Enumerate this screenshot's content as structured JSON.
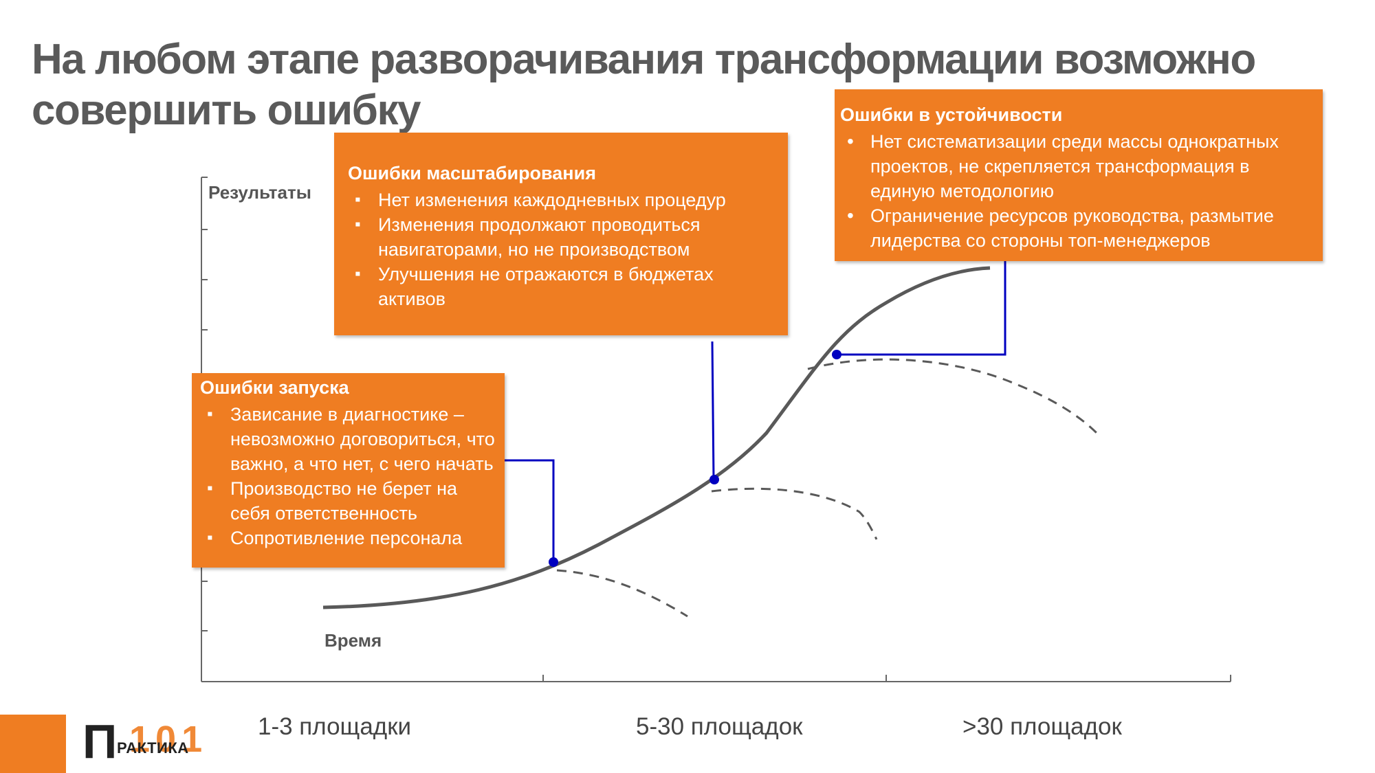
{
  "title": "На любом этапе разворачивания трансформации возможно совершить ошибку",
  "axes": {
    "y_label": "Результаты",
    "x_label": "Время"
  },
  "categories": [
    "1-3 площадки",
    "5-30 площадок",
    ">30 площадок"
  ],
  "callouts": {
    "launch": {
      "title": "Ошибки запуска",
      "items": [
        "Зависание в диагностике – невозможно договориться, что важно, а что нет, с чего начать",
        "Производство  не берет на себя ответственность",
        "Сопротивление персонала"
      ]
    },
    "scaling": {
      "title": "Ошибки масштабирования",
      "items": [
        "Нет изменения каждодневных  процедур",
        "Изменения продолжают проводиться навигаторами, но не производством",
        "Улучшения не отражаются в бюджетах активов"
      ]
    },
    "sustain": {
      "title": "Ошибки в устойчивости",
      "items": [
        "Нет систематизации среди массы однократных проектов, не скрепляется трансформация в единую методологию",
        "Ограничение ресурсов руководства, размытие лидерства со стороны топ-менеджеров"
      ]
    }
  },
  "logo": {
    "letter": "П",
    "word": "РАКТИКА",
    "number": "101"
  },
  "colors": {
    "accent": "#ef7d22",
    "curve": "#595959",
    "connector": "#0000c0",
    "title": "#5a5a5a"
  }
}
